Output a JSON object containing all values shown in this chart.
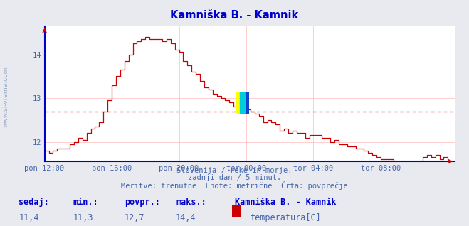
{
  "title": "Kamniška B. - Kamnik",
  "title_color": "#0000cc",
  "bg_color": "#e8eaf0",
  "plot_bg_color": "#ffffff",
  "grid_color": "#ffaaaa",
  "line_color": "#cc0000",
  "avg_line_color": "#cc0000",
  "avg_value": 12.7,
  "x_min": 0,
  "x_max": 293,
  "y_min": 11.55,
  "y_max": 14.65,
  "y_ticks": [
    12,
    13,
    14
  ],
  "x_tick_labels": [
    "pon 12:00",
    "pon 16:00",
    "pon 20:00",
    "tor 00:00",
    "tor 04:00",
    "tor 08:00"
  ],
  "x_tick_positions": [
    0,
    48,
    96,
    144,
    192,
    240
  ],
  "subtitle_lines": [
    "Slovenija / reke in morje.",
    "zadnji dan / 5 minut.",
    "Meritve: trenutne  Enote: metrične  Črta: povprečje"
  ],
  "subtitle_color": "#4466aa",
  "bottom_labels": [
    "sedaj:",
    "min.:",
    "povpr.:",
    "maks.:"
  ],
  "bottom_values": [
    "11,4",
    "11,3",
    "12,7",
    "14,4"
  ],
  "bottom_series_name": "Kamniška B. - Kamnik",
  "bottom_series_label": "temperatura[C]",
  "bottom_color": "#0000cc",
  "bottom_value_color": "#4466aa",
  "watermark": "www.si-vreme.com",
  "arrow_color": "#cc0000",
  "axis_color": "#0000cc"
}
